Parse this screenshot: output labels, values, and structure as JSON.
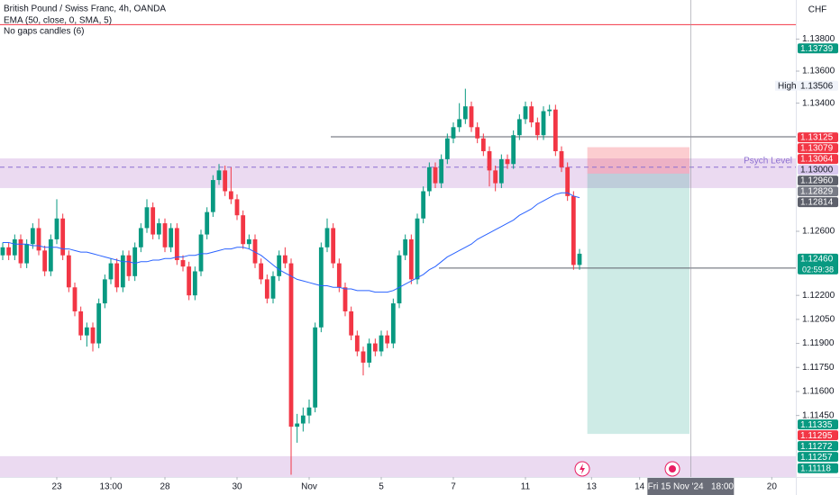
{
  "header": {
    "title": "British Pound / Swiss Franc, 4h, OANDA",
    "indicators": [
      "EMA (50, close, 0, SMA, 5)",
      "No gaps candles (6)"
    ]
  },
  "chart_data": {
    "type": "candlestick",
    "currency": "CHF",
    "open": [
      1.1245,
      1.125,
      1.1245,
      1.1255,
      1.124,
      1.1252,
      1.1262,
      1.1248,
      1.1235,
      1.1255,
      1.1268,
      1.1245,
      1.1225,
      1.121,
      1.1195,
      1.12,
      1.119,
      1.1215,
      1.123,
      1.124,
      1.1225,
      1.1245,
      1.1232,
      1.125,
      1.1262,
      1.1275,
      1.1258,
      1.1265,
      1.125,
      1.1262,
      1.1242,
      1.1238,
      1.122,
      1.1235,
      1.1258,
      1.1272,
      1.1292,
      1.1298,
      1.1285,
      1.128,
      1.127,
      1.1252,
      1.1255,
      1.124,
      1.123,
      1.1218,
      1.1232,
      1.1245,
      1.124,
      1.1138,
      1.114,
      1.1145,
      1.115,
      1.12,
      1.125,
      1.1262,
      1.124,
      1.1225,
      1.121,
      1.1195,
      1.1185,
      1.1178,
      1.119,
      1.1185,
      1.1195,
      1.119,
      1.1215,
      1.1245,
      1.1255,
      1.123,
      1.1268,
      1.1285,
      1.13,
      1.129,
      1.1305,
      1.1318,
      1.1325,
      1.133,
      1.1338,
      1.1325,
      1.1318,
      1.131,
      1.1298,
      1.129,
      1.1305,
      1.1302,
      1.132,
      1.133,
      1.1338,
      1.1328,
      1.132,
      1.1335,
      1.1336,
      1.131,
      1.13,
      1.1282,
      1.1239
    ],
    "high": [
      1.1253,
      1.1253,
      1.1258,
      1.1258,
      1.1255,
      1.1265,
      1.1268,
      1.1251,
      1.1258,
      1.128,
      1.1271,
      1.1248,
      1.1228,
      1.1213,
      1.1203,
      1.1203,
      1.1218,
      1.1233,
      1.1243,
      1.1243,
      1.1248,
      1.1248,
      1.1253,
      1.1265,
      1.128,
      1.1278,
      1.1268,
      1.1268,
      1.1265,
      1.1265,
      1.1245,
      1.1241,
      1.1238,
      1.1261,
      1.1275,
      1.1295,
      1.1302,
      1.1301,
      1.13,
      1.1283,
      1.1273,
      1.1258,
      1.1258,
      1.1243,
      1.1233,
      1.1235,
      1.1248,
      1.125,
      1.1243,
      1.1146,
      1.115,
      1.1155,
      1.1203,
      1.1253,
      1.1268,
      1.1265,
      1.1243,
      1.1228,
      1.1213,
      1.1198,
      1.1188,
      1.1193,
      1.1193,
      1.1198,
      1.1198,
      1.1218,
      1.1248,
      1.1258,
      1.1258,
      1.1271,
      1.1288,
      1.1303,
      1.1303,
      1.1308,
      1.1321,
      1.1328,
      1.134,
      1.1349,
      1.1341,
      1.1328,
      1.1321,
      1.1313,
      1.1301,
      1.1308,
      1.1308,
      1.1323,
      1.1333,
      1.1341,
      1.1341,
      1.1331,
      1.1338,
      1.1339,
      1.1339,
      1.1313,
      1.1303,
      1.1285,
      1.1249
    ],
    "low": [
      1.1242,
      1.1242,
      1.1242,
      1.1237,
      1.1237,
      1.1249,
      1.1245,
      1.1232,
      1.1232,
      1.1252,
      1.1242,
      1.1222,
      1.1207,
      1.1192,
      1.1188,
      1.1185,
      1.1187,
      1.1212,
      1.1227,
      1.1222,
      1.1222,
      1.1229,
      1.1229,
      1.1247,
      1.1259,
      1.1255,
      1.1255,
      1.1247,
      1.1247,
      1.1239,
      1.1235,
      1.1217,
      1.1217,
      1.1232,
      1.1255,
      1.1269,
      1.1289,
      1.1282,
      1.1277,
      1.1267,
      1.1249,
      1.1249,
      1.1237,
      1.1227,
      1.1215,
      1.1215,
      1.1229,
      1.1237,
      1.1108,
      1.1128,
      1.1135,
      1.114,
      1.1147,
      1.1197,
      1.1247,
      1.1237,
      1.1222,
      1.1207,
      1.1192,
      1.1182,
      1.117,
      1.1175,
      1.1182,
      1.1182,
      1.1187,
      1.1187,
      1.1212,
      1.1242,
      1.1227,
      1.1227,
      1.1265,
      1.1282,
      1.1287,
      1.1287,
      1.1302,
      1.1315,
      1.1322,
      1.1327,
      1.1322,
      1.1315,
      1.1307,
      1.1288,
      1.1285,
      1.1287,
      1.1299,
      1.1299,
      1.1317,
      1.1327,
      1.1325,
      1.1317,
      1.1317,
      1.1332,
      1.1307,
      1.1297,
      1.1279,
      1.1236,
      1.1236
    ],
    "close": [
      1.125,
      1.1245,
      1.1255,
      1.124,
      1.1252,
      1.1262,
      1.1248,
      1.1235,
      1.1255,
      1.1268,
      1.1245,
      1.1225,
      1.121,
      1.1195,
      1.12,
      1.119,
      1.1215,
      1.123,
      1.124,
      1.1225,
      1.1245,
      1.1232,
      1.125,
      1.1262,
      1.1275,
      1.1258,
      1.1265,
      1.125,
      1.1262,
      1.1242,
      1.1238,
      1.122,
      1.1235,
      1.1258,
      1.1272,
      1.1292,
      1.1298,
      1.1285,
      1.128,
      1.127,
      1.1252,
      1.1255,
      1.124,
      1.123,
      1.1218,
      1.1232,
      1.1245,
      1.124,
      1.1138,
      1.114,
      1.1145,
      1.115,
      1.12,
      1.125,
      1.1262,
      1.124,
      1.1225,
      1.121,
      1.1195,
      1.1185,
      1.1178,
      1.119,
      1.1185,
      1.1195,
      1.119,
      1.1215,
      1.1245,
      1.1255,
      1.123,
      1.1268,
      1.1285,
      1.13,
      1.129,
      1.1305,
      1.1318,
      1.1325,
      1.133,
      1.1338,
      1.1325,
      1.1318,
      1.131,
      1.1298,
      1.129,
      1.1305,
      1.1302,
      1.132,
      1.133,
      1.1338,
      1.1328,
      1.132,
      1.1335,
      1.1336,
      1.131,
      1.13,
      1.1282,
      1.1239,
      1.1246
    ],
    "up_color": "#089981",
    "down_color": "#f23645",
    "ema": {
      "color": "#2962ff",
      "values": [
        1.1253,
        1.1253,
        1.1252,
        1.1252,
        1.1252,
        1.1251,
        1.1251,
        1.125,
        1.125,
        1.125,
        1.1249,
        1.1249,
        1.1248,
        1.1247,
        1.1247,
        1.1246,
        1.1245,
        1.1244,
        1.1243,
        1.1242,
        1.1241,
        1.1241,
        1.124,
        1.1241,
        1.1241,
        1.1242,
        1.1242,
        1.1243,
        1.1243,
        1.1244,
        1.1244,
        1.1245,
        1.1245,
        1.1246,
        1.1246,
        1.1247,
        1.1248,
        1.1249,
        1.1249,
        1.125,
        1.125,
        1.1249,
        1.1247,
        1.1245,
        1.1242,
        1.1239,
        1.1236,
        1.1234,
        1.1232,
        1.123,
        1.1229,
        1.1228,
        1.1227,
        1.1226,
        1.1226,
        1.1225,
        1.1225,
        1.1224,
        1.1224,
        1.1223,
        1.1223,
        1.1223,
        1.1222,
        1.1222,
        1.1222,
        1.1223,
        1.1225,
        1.1227,
        1.1229,
        1.1231,
        1.1233,
        1.1236,
        1.1238,
        1.1241,
        1.1244,
        1.1246,
        1.1248,
        1.125,
        1.1252,
        1.1255,
        1.1257,
        1.1259,
        1.1261,
        1.1263,
        1.1265,
        1.1267,
        1.127,
        1.1272,
        1.1274,
        1.1277,
        1.1279,
        1.1281,
        1.1283,
        1.1284,
        1.1284,
        1.1282,
        1.1281
      ]
    },
    "xlim": [
      -0.45,
      132
    ],
    "ylim": [
      1.11066,
      1.14044
    ],
    "xticks": [
      {
        "value": 9,
        "label": "23"
      },
      {
        "value": 18,
        "label": "13:00"
      },
      {
        "value": 27,
        "label": "28"
      },
      {
        "value": 39,
        "label": "30"
      },
      {
        "value": 51,
        "label": "Nov"
      },
      {
        "value": 63,
        "label": "5"
      },
      {
        "value": 75,
        "label": "7"
      },
      {
        "value": 87,
        "label": "11"
      },
      {
        "value": 98,
        "label": "13"
      },
      {
        "value": 106,
        "label": "14"
      },
      {
        "value": 128,
        "label": "20"
      }
    ],
    "yticks": [
      {
        "value": 1.138,
        "label": "1.13800"
      },
      {
        "value": 1.136,
        "label": "1.13600"
      },
      {
        "value": 1.134,
        "label": "1.13400"
      },
      {
        "value": 1.126,
        "label": "1.12600"
      },
      {
        "value": 1.122,
        "label": "1.12200"
      },
      {
        "value": 1.1205,
        "label": "1.12050"
      },
      {
        "value": 1.119,
        "label": "1.11900"
      },
      {
        "value": 1.1175,
        "label": "1.11750"
      },
      {
        "value": 1.116,
        "label": "1.11600"
      },
      {
        "value": 1.1145,
        "label": "1.11450"
      }
    ],
    "zones": [
      {
        "from": 1.1287,
        "to": 1.13055,
        "color": "#e7d4ef"
      },
      {
        "from": 1.11066,
        "to": 1.11196,
        "color": "#e7d4ef"
      }
    ],
    "psych_level": {
      "value": 1.13,
      "label": "Psych Level",
      "color": "#8c6fd1"
    },
    "levels": [
      {
        "value": 1.1319,
        "start": 54.6
      },
      {
        "value": 1.1237,
        "start": 72.6
      }
    ],
    "alert_line": {
      "value": 1.1389,
      "color": "#f23645"
    },
    "position": {
      "start": 97.3,
      "end": 114.3,
      "entry": 1.1296,
      "stop": 1.13125,
      "target": 1.11335
    },
    "cursor": {
      "value": 114.5,
      "label": "Fri 15 Nov '24   18:00"
    },
    "price_labels": [
      {
        "value": 1.13739,
        "label": "1.13739",
        "color": "#089981"
      },
      {
        "value": 1.13506,
        "label": "1.13506",
        "color": "#f0f3fa",
        "tag": "High"
      },
      {
        "value": 1.13125,
        "label": "1.13125",
        "color": "#f23645"
      },
      {
        "value": 1.13079,
        "label": "1.13079",
        "color": "#f23645"
      },
      {
        "value": 1.13064,
        "label": "1.13064",
        "color": "#f23645"
      },
      {
        "value": 1.13,
        "label": "1.13000",
        "color": "#d9c9ef"
      },
      {
        "value": 1.1296,
        "label": "1.12960",
        "color": "#5d606b"
      },
      {
        "value": 1.12829,
        "label": "1.12829",
        "color": "#787b86"
      },
      {
        "value": 1.12814,
        "label": "1.12814",
        "color": "#5d606b"
      },
      {
        "value": 1.1246,
        "label": "1.12460",
        "color": "#089981",
        "sublabel": "02:59:38"
      },
      {
        "value": 1.11335,
        "label": "1.11335",
        "color": "#089981"
      },
      {
        "value": 1.11295,
        "label": "1.11295",
        "color": "#f23645"
      },
      {
        "value": 1.11272,
        "label": "1.11272",
        "color": "#089981"
      },
      {
        "value": 1.11257,
        "label": "1.11257",
        "color": "#089981"
      },
      {
        "value": 1.11118,
        "label": "1.11118",
        "color": "#089981"
      }
    ]
  }
}
